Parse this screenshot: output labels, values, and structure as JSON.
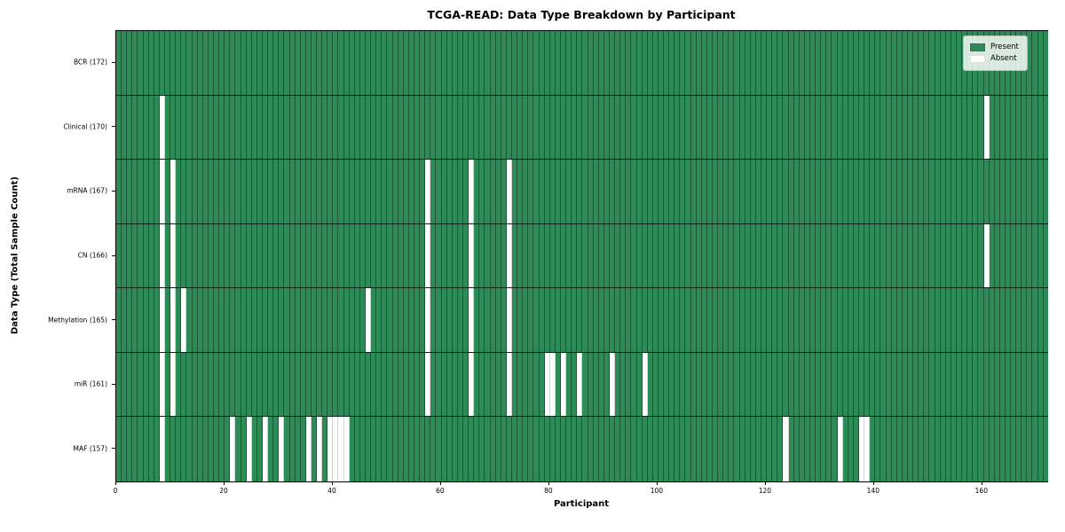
{
  "chart_data": {
    "type": "heatmap",
    "title": "TCGA-READ: Data Type Breakdown by Participant",
    "xlabel": "Participant",
    "ylabel": "Data Type (Total Sample Count)",
    "n_participants": 172,
    "x_ticks": [
      0,
      20,
      40,
      60,
      80,
      100,
      120,
      140,
      160
    ],
    "grid": "cell-borders-on",
    "legend_position": "upper-right",
    "legend": [
      {
        "label": "Present",
        "color": "#2e8b57"
      },
      {
        "label": "Absent",
        "color": "#ffffff"
      }
    ],
    "colors": {
      "present": "#2e8b57",
      "absent": "#ffffff",
      "cell_edge": "rgba(15,45,25,0.55)"
    },
    "rows": [
      {
        "label": "BCR (172)",
        "total_sample_count": 172,
        "absent_participants": []
      },
      {
        "label": "Clinical (170)",
        "total_sample_count": 170,
        "absent_participants": [
          8,
          160
        ]
      },
      {
        "label": "mRNA (167)",
        "total_sample_count": 167,
        "absent_participants": [
          8,
          10,
          57,
          65,
          72
        ]
      },
      {
        "label": "CN (166)",
        "total_sample_count": 166,
        "absent_participants": [
          8,
          10,
          57,
          65,
          72,
          160
        ]
      },
      {
        "label": "Methylation (165)",
        "total_sample_count": 165,
        "absent_participants": [
          8,
          10,
          12,
          46,
          57,
          65,
          72
        ]
      },
      {
        "label": "miR (161)",
        "total_sample_count": 161,
        "absent_participants": [
          8,
          10,
          57,
          65,
          72,
          79,
          80,
          82,
          85,
          91,
          97
        ]
      },
      {
        "label": "MAF (157)",
        "total_sample_count": 157,
        "absent_participants": [
          8,
          21,
          24,
          27,
          30,
          35,
          37,
          39,
          40,
          41,
          42,
          123,
          133,
          137,
          138
        ]
      }
    ]
  }
}
